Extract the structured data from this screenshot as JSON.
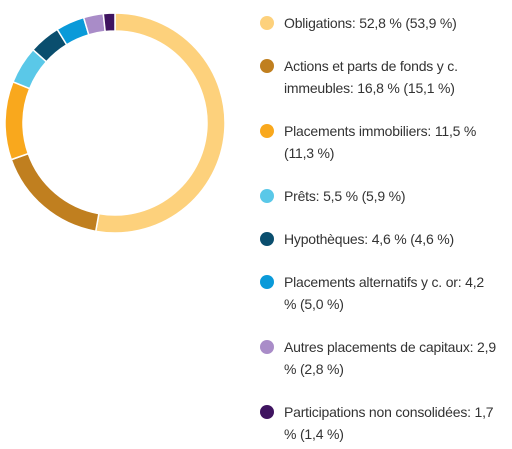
{
  "chart_data": {
    "type": "donut",
    "categories": [
      "Obligations:",
      "Actions et parts de fonds y c. immeubles:",
      "Placements immobiliers:",
      "Prêts:",
      "Hypothèques:",
      "Placements alternatifs y c. or:",
      "Autres placements de capitaux:",
      "Participations non consolidées:"
    ],
    "values": [
      52.8,
      16.8,
      11.5,
      5.5,
      4.6,
      4.2,
      2.9,
      1.7
    ],
    "value_labels": [
      "52,8 %",
      "16,8 %",
      "11,5 %",
      "5,5 %",
      "4,6 %",
      "4,2 %",
      "2,9 %",
      "1,7 %"
    ],
    "previous_labels": [
      "(53,9 %)",
      "(15,1 %)",
      "(11,3 %)",
      "(5,9 %)",
      "(4,6 %)",
      "(5,0 %)",
      "(2,8 %)",
      "(1,4 %)"
    ],
    "colors": [
      "#fdd17c",
      "#c07f1f",
      "#f9a81d",
      "#5ac8e8",
      "#0a4e6e",
      "#0a9ad9",
      "#a98cc8",
      "#3f1460"
    ]
  }
}
